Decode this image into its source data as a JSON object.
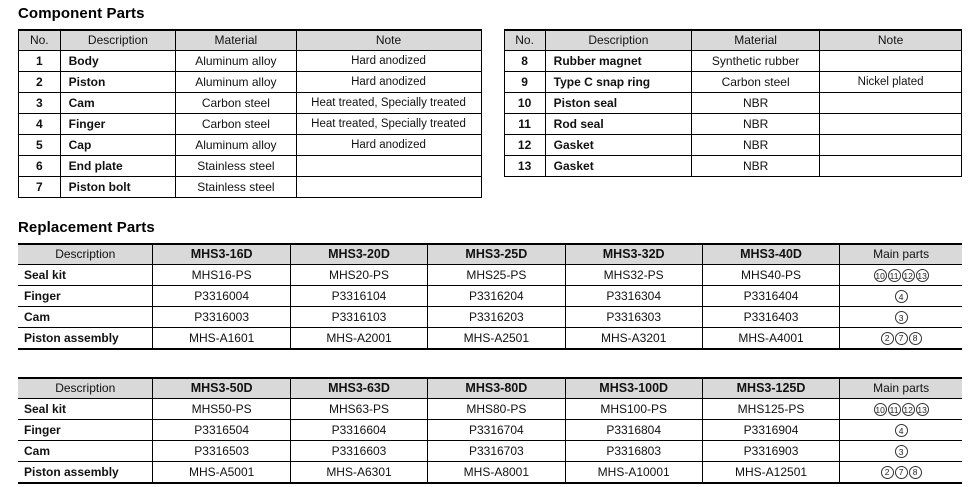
{
  "colors": {
    "header_bg": "#d9d9d9",
    "border": "#000000",
    "text": "#111111"
  },
  "component_parts": {
    "title": "Component Parts",
    "headers": [
      "No.",
      "Description",
      "Material",
      "Note"
    ],
    "tables": [
      {
        "rows": [
          [
            "1",
            "Body",
            "Aluminum alloy",
            "Hard anodized"
          ],
          [
            "2",
            "Piston",
            "Aluminum alloy",
            "Hard anodized"
          ],
          [
            "3",
            "Cam",
            "Carbon steel",
            "Heat treated, Specially treated"
          ],
          [
            "4",
            "Finger",
            "Carbon steel",
            "Heat treated, Specially treated"
          ],
          [
            "5",
            "Cap",
            "Aluminum alloy",
            "Hard anodized"
          ],
          [
            "6",
            "End plate",
            "Stainless steel",
            ""
          ],
          [
            "7",
            "Piston bolt",
            "Stainless steel",
            ""
          ]
        ]
      },
      {
        "rows": [
          [
            "8",
            "Rubber magnet",
            "Synthetic rubber",
            ""
          ],
          [
            "9",
            "Type C snap ring",
            "Carbon steel",
            "Nickel plated"
          ],
          [
            "10",
            "Piston seal",
            "NBR",
            ""
          ],
          [
            "11",
            "Rod seal",
            "NBR",
            ""
          ],
          [
            "12",
            "Gasket",
            "NBR",
            ""
          ],
          [
            "13",
            "Gasket",
            "NBR",
            ""
          ]
        ]
      }
    ]
  },
  "replacement_parts": {
    "title": "Replacement Parts",
    "tables": [
      {
        "headers": [
          "Description",
          "MHS3-16D",
          "MHS3-20D",
          "MHS3-25D",
          "MHS3-32D",
          "MHS3-40D",
          "Main parts"
        ],
        "rows": [
          {
            "label": "Seal kit",
            "values": [
              "MHS16-PS",
              "MHS20-PS",
              "MHS25-PS",
              "MHS32-PS",
              "MHS40-PS"
            ],
            "main_parts": [
              "10",
              "11",
              "12",
              "13"
            ]
          },
          {
            "label": "Finger",
            "values": [
              "P3316004",
              "P3316104",
              "P3316204",
              "P3316304",
              "P3316404"
            ],
            "main_parts": [
              "4"
            ]
          },
          {
            "label": "Cam",
            "values": [
              "P3316003",
              "P3316103",
              "P3316203",
              "P3316303",
              "P3316403"
            ],
            "main_parts": [
              "3"
            ]
          },
          {
            "label": "Piston assembly",
            "values": [
              "MHS-A1601",
              "MHS-A2001",
              "MHS-A2501",
              "MHS-A3201",
              "MHS-A4001"
            ],
            "main_parts": [
              "2",
              "7",
              "8"
            ]
          }
        ]
      },
      {
        "headers": [
          "Description",
          "MHS3-50D",
          "MHS3-63D",
          "MHS3-80D",
          "MHS3-100D",
          "MHS3-125D",
          "Main parts"
        ],
        "rows": [
          {
            "label": "Seal kit",
            "values": [
              "MHS50-PS",
              "MHS63-PS",
              "MHS80-PS",
              "MHS100-PS",
              "MHS125-PS"
            ],
            "main_parts": [
              "10",
              "11",
              "12",
              "13"
            ]
          },
          {
            "label": "Finger",
            "values": [
              "P3316504",
              "P3316604",
              "P3316704",
              "P3316804",
              "P3316904"
            ],
            "main_parts": [
              "4"
            ]
          },
          {
            "label": "Cam",
            "values": [
              "P3316503",
              "P3316603",
              "P3316703",
              "P3316803",
              "P3316903"
            ],
            "main_parts": [
              "3"
            ]
          },
          {
            "label": "Piston assembly",
            "values": [
              "MHS-A5001",
              "MHS-A6301",
              "MHS-A8001",
              "MHS-A10001",
              "MHS-A12501"
            ],
            "main_parts": [
              "2",
              "7",
              "8"
            ]
          }
        ]
      }
    ]
  }
}
